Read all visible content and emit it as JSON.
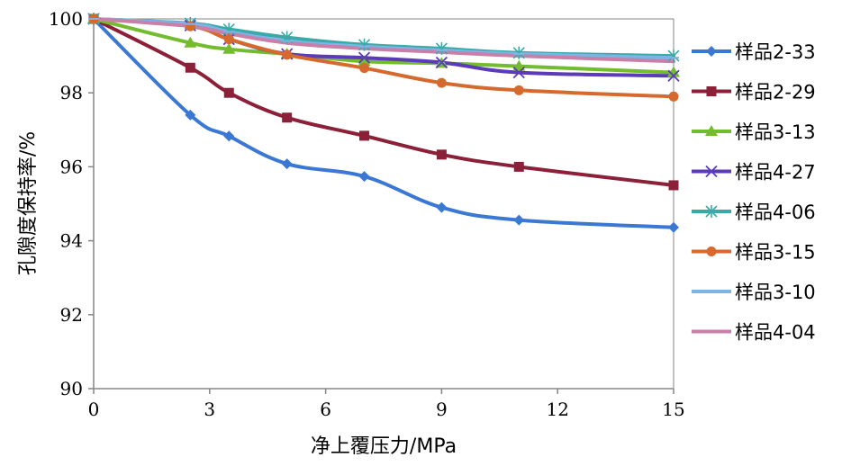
{
  "chart_data": {
    "type": "line",
    "title": "",
    "xlabel": "净上覆压力/MPa",
    "ylabel": "孔隙度保持率/%",
    "xlim": [
      0,
      15
    ],
    "ylim": [
      90,
      100
    ],
    "x_ticks": [
      "0",
      "3",
      "6",
      "9",
      "12",
      "15"
    ],
    "y_ticks": [
      "90",
      "92",
      "94",
      "96",
      "98",
      "100"
    ],
    "x": [
      0,
      2.5,
      3.5,
      5,
      7,
      9,
      11,
      15
    ],
    "grid": false,
    "legend_position": "right",
    "series": [
      {
        "name": "样品2-33",
        "color": "#3a78d4",
        "marker": "diamond",
        "values": [
          100,
          97.4,
          96.83,
          96.08,
          95.74,
          94.9,
          94.56,
          94.36
        ]
      },
      {
        "name": "样品2-29",
        "color": "#8b2038",
        "marker": "square",
        "values": [
          100,
          98.68,
          98.0,
          97.33,
          96.84,
          96.33,
          96.0,
          95.5
        ]
      },
      {
        "name": "样品3-13",
        "color": "#73bc2e",
        "marker": "triangle",
        "values": [
          100,
          99.35,
          99.18,
          99.05,
          98.85,
          98.8,
          98.72,
          98.55
        ]
      },
      {
        "name": "样品4-27",
        "color": "#5b3bb8",
        "marker": "x",
        "values": [
          100,
          99.82,
          99.45,
          99.05,
          98.95,
          98.82,
          98.55,
          98.46
        ]
      },
      {
        "name": "样品4-06",
        "color": "#3aaaa8",
        "marker": "asterisk",
        "values": [
          100,
          99.88,
          99.72,
          99.5,
          99.3,
          99.2,
          99.08,
          99.0
        ]
      },
      {
        "name": "样品3-15",
        "color": "#d66a2e",
        "marker": "circle",
        "values": [
          100,
          99.8,
          99.45,
          99.03,
          98.67,
          98.27,
          98.07,
          97.9
        ]
      },
      {
        "name": "样品3-10",
        "color": "#7eb3e6",
        "marker": "dash",
        "values": [
          100,
          99.86,
          99.65,
          99.4,
          99.25,
          99.15,
          99.05,
          98.95
        ]
      },
      {
        "name": "样品4-04",
        "color": "#c87fa8",
        "marker": "none",
        "values": [
          100,
          99.8,
          99.6,
          99.35,
          99.2,
          99.1,
          99.0,
          98.85
        ]
      }
    ]
  }
}
